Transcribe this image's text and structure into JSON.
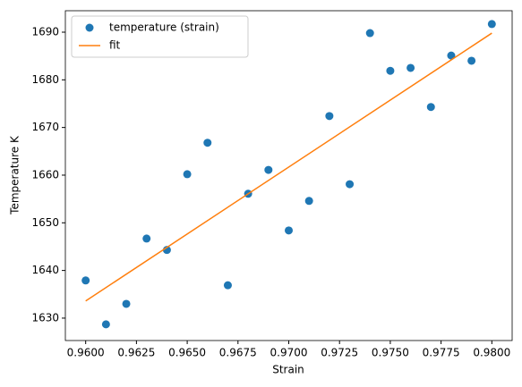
{
  "chart_data": {
    "type": "scatter",
    "xlabel": "Strain",
    "ylabel": "Temperature K",
    "xlim": [
      0.959,
      0.981
    ],
    "ylim": [
      1625.3,
      1694.5
    ],
    "xticks": [
      {
        "value": 0.96,
        "label": "0.9600"
      },
      {
        "value": 0.9625,
        "label": "0.9625"
      },
      {
        "value": 0.965,
        "label": "0.9650"
      },
      {
        "value": 0.9675,
        "label": "0.9675"
      },
      {
        "value": 0.97,
        "label": "0.9700"
      },
      {
        "value": 0.9725,
        "label": "0.9725"
      },
      {
        "value": 0.975,
        "label": "0.9750"
      },
      {
        "value": 0.9775,
        "label": "0.9775"
      },
      {
        "value": 0.98,
        "label": "0.9800"
      }
    ],
    "yticks": [
      1630,
      1640,
      1650,
      1660,
      1670,
      1680,
      1690
    ],
    "legend": "upper left",
    "series": [
      {
        "name": "temperature (strain)",
        "type": "scatter",
        "color": "#1f77b4",
        "x": [
          0.96,
          0.961,
          0.962,
          0.963,
          0.964,
          0.965,
          0.966,
          0.967,
          0.968,
          0.969,
          0.97,
          0.971,
          0.972,
          0.973,
          0.974,
          0.975,
          0.976,
          0.977,
          0.978,
          0.979,
          0.98
        ],
        "values": [
          1637.9,
          1628.7,
          1633.0,
          1646.7,
          1644.3,
          1660.2,
          1666.8,
          1636.9,
          1656.1,
          1661.1,
          1648.4,
          1654.6,
          1672.4,
          1658.1,
          1689.8,
          1681.9,
          1682.5,
          1674.3,
          1685.1,
          1684.0,
          1691.7
        ]
      },
      {
        "name": "fit",
        "type": "line",
        "color": "#ff7f0e",
        "x": [
          0.96,
          0.98
        ],
        "values": [
          1633.6,
          1689.8
        ]
      }
    ]
  }
}
